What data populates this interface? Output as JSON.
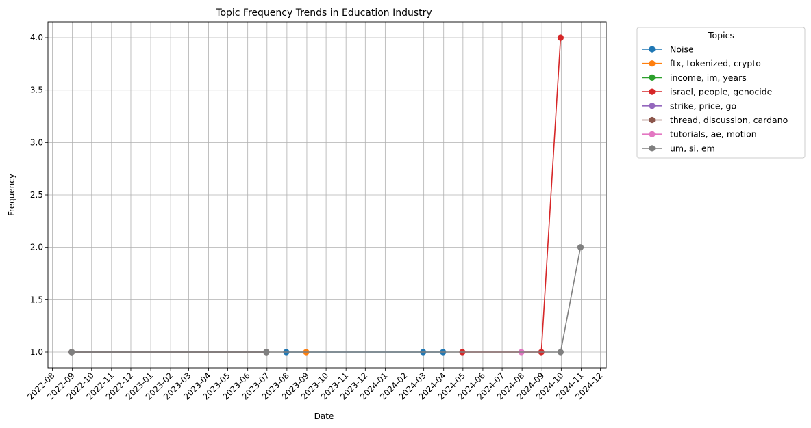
{
  "chart_data": {
    "type": "line",
    "title": "Topic Frequency Trends in Education Industry",
    "xlabel": "Date",
    "ylabel": "Frequency",
    "x_ticks": [
      "2022-08",
      "2022-09",
      "2022-10",
      "2022-11",
      "2022-12",
      "2023-01",
      "2023-02",
      "2023-03",
      "2023-04",
      "2023-05",
      "2023-06",
      "2023-07",
      "2023-08",
      "2023-09",
      "2023-10",
      "2023-11",
      "2023-12",
      "2024-01",
      "2024-02",
      "2024-03",
      "2024-04",
      "2024-05",
      "2024-06",
      "2024-07",
      "2024-08",
      "2024-09",
      "2024-10",
      "2024-11",
      "2024-12"
    ],
    "y_ticks": [
      "1.0",
      "1.5",
      "2.0",
      "2.5",
      "3.0",
      "3.5",
      "4.0"
    ],
    "xlim": [
      "2022-07-25",
      "2024-12-10"
    ],
    "ylim": [
      0.85,
      4.15
    ],
    "grid": true,
    "legend": {
      "title": "Topics",
      "placement": "outside-upper-right"
    },
    "series": [
      {
        "name": "Noise",
        "color": "#1f77b4",
        "points": [
          [
            "2023-07-31",
            1
          ],
          [
            "2024-02-29",
            1
          ],
          [
            "2024-03-31",
            1
          ]
        ]
      },
      {
        "name": "ftx, tokenized, crypto",
        "color": "#ff7f0e",
        "points": [
          [
            "2023-08-31",
            1
          ]
        ]
      },
      {
        "name": "income, im, years",
        "color": "#2ca02c",
        "points": [
          [
            "2022-08-31",
            1
          ],
          [
            "2023-06-30",
            1
          ]
        ]
      },
      {
        "name": "israel, people, genocide",
        "color": "#d62728",
        "points": [
          [
            "2024-04-30",
            1
          ],
          [
            "2024-08-31",
            1
          ],
          [
            "2024-09-30",
            4
          ]
        ]
      },
      {
        "name": "strike, price, go",
        "color": "#9467bd",
        "points": [
          [
            "2022-08-31",
            1
          ],
          [
            "2023-06-30",
            1
          ]
        ]
      },
      {
        "name": "thread, discussion, cardano",
        "color": "#8c564b",
        "points": [
          [
            "2022-08-31",
            1
          ],
          [
            "2023-06-30",
            1
          ]
        ]
      },
      {
        "name": "tutorials, ae, motion",
        "color": "#e377c2",
        "points": [
          [
            "2024-07-31",
            1
          ]
        ]
      },
      {
        "name": "um, si, em",
        "color": "#7f7f7f",
        "points": [
          [
            "2022-08-31",
            1
          ],
          [
            "2023-06-30",
            1
          ],
          [
            "2024-09-30",
            1
          ],
          [
            "2024-10-31",
            2
          ]
        ]
      }
    ]
  }
}
